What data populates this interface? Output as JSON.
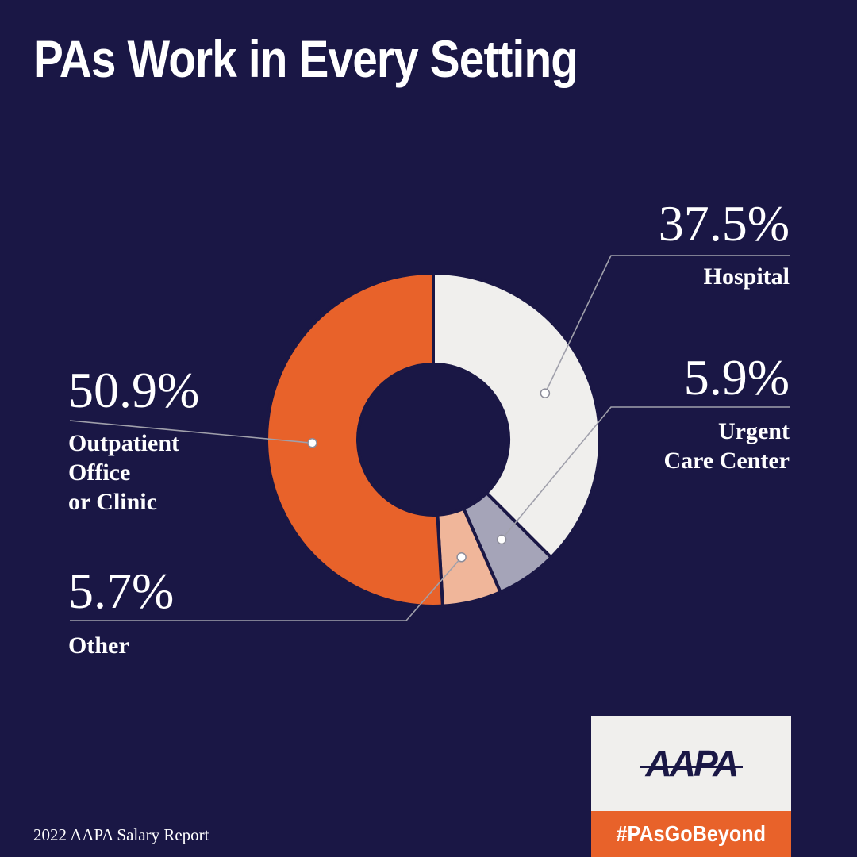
{
  "title": "PAs Work in Every Setting",
  "footer": "2022 AAPA Salary Report",
  "logo": {
    "text": "AAPA",
    "hashtag": "#PAsGoBeyond"
  },
  "colors": {
    "background": "#1a1745",
    "outpatient": "#e8622a",
    "hospital": "#f0efed",
    "urgent": "#a5a4b8",
    "other": "#f0b69a",
    "leader": "#a0a0ab"
  },
  "chart_data": {
    "type": "pie",
    "variant": "donut",
    "title": "PAs Work in Every Setting",
    "slices": [
      {
        "key": "hospital",
        "label": "Hospital",
        "value": 37.5,
        "display": "37.5%",
        "color": "#f0efed"
      },
      {
        "key": "urgent",
        "label": "Urgent Care Center",
        "value": 5.9,
        "display": "5.9%",
        "color": "#a5a4b8"
      },
      {
        "key": "other",
        "label": "Other",
        "value": 5.7,
        "display": "5.7%",
        "color": "#f0b69a"
      },
      {
        "key": "outpatient",
        "label": "Outpatient Office or Clinic",
        "value": 50.9,
        "display": "50.9%",
        "color": "#e8622a"
      }
    ],
    "label_lines": {
      "hospital": [
        "Hospital"
      ],
      "urgent": [
        "Urgent",
        "Care Center"
      ],
      "other": [
        "Other"
      ],
      "outpatient": [
        "Outpatient",
        "Office",
        "or Clinic"
      ]
    }
  }
}
